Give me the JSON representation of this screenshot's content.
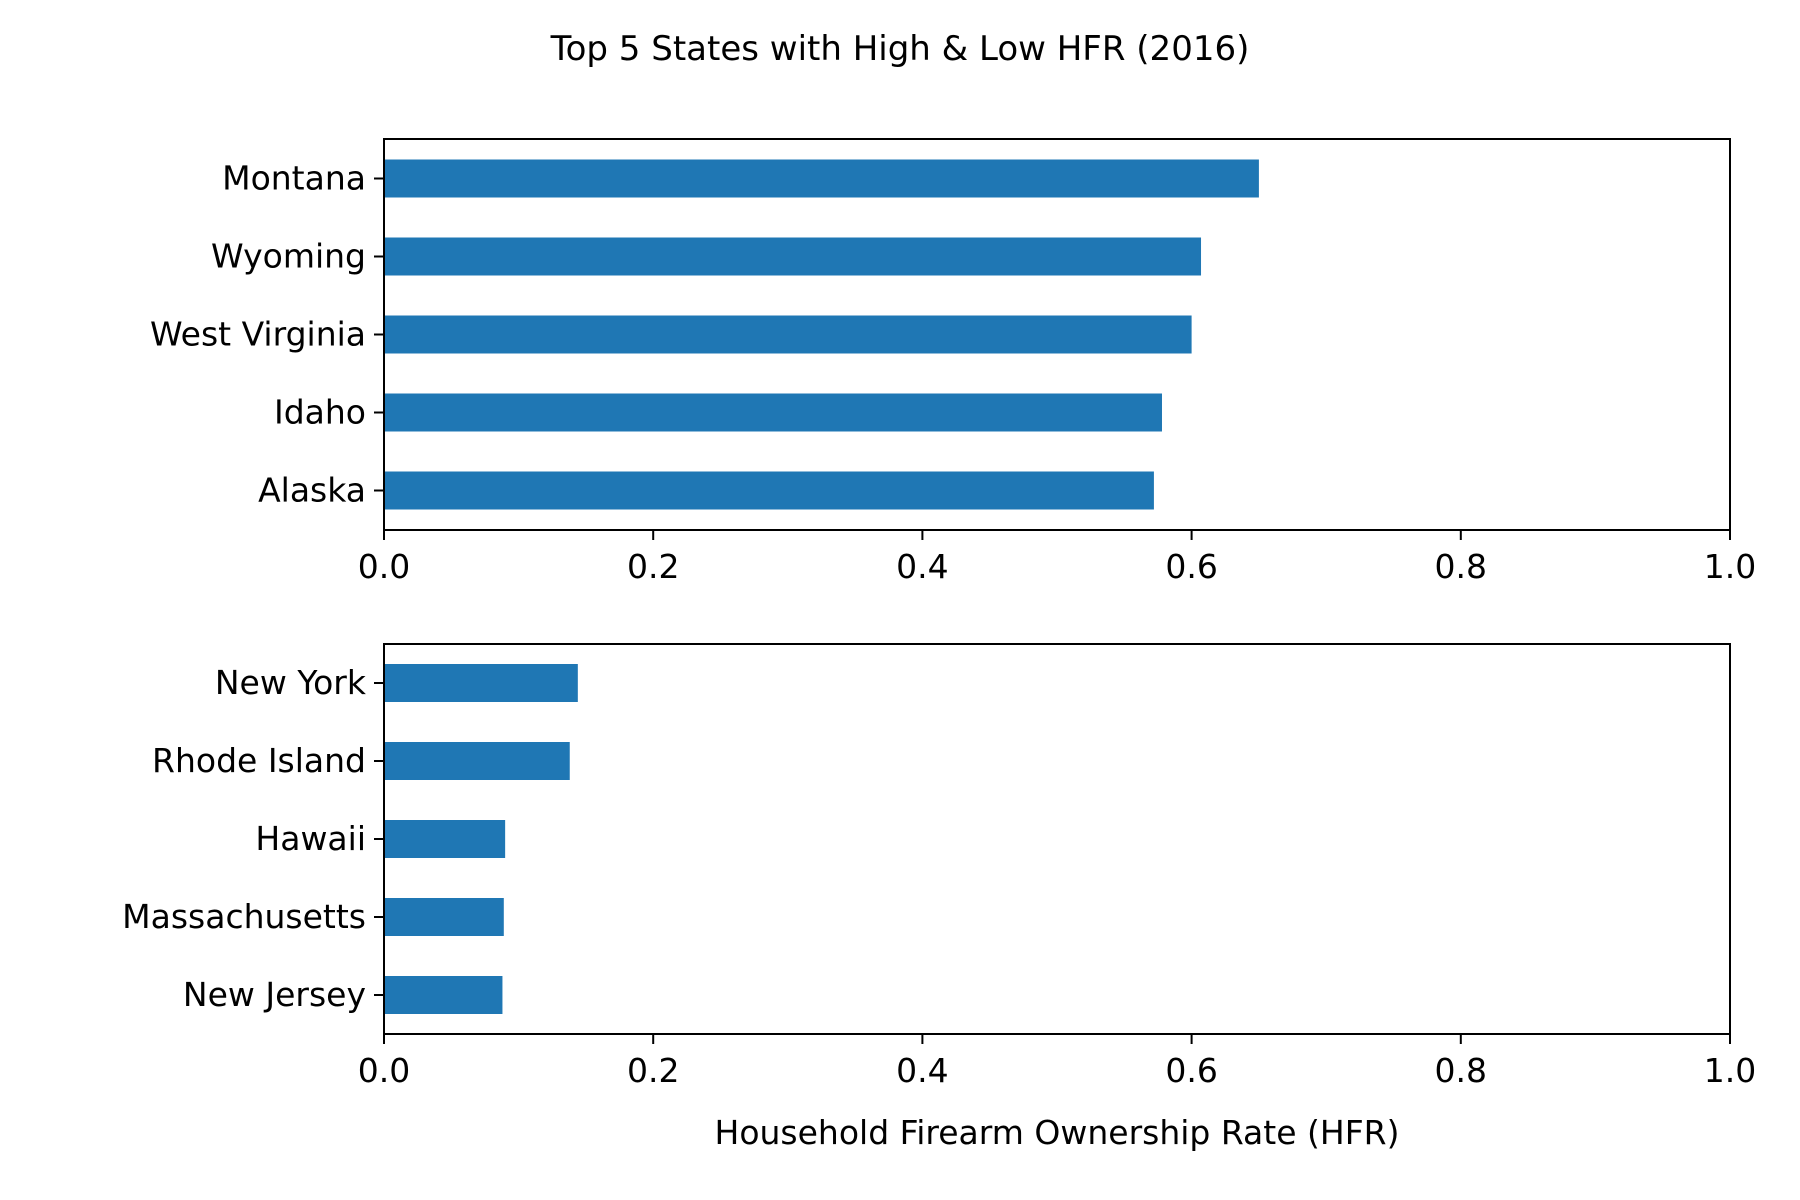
{
  "title": "Top 5 States with High & Low HFR (2016)",
  "bar_color": "#1f77b4",
  "chart_data": [
    {
      "type": "bar",
      "orientation": "horizontal",
      "categories": [
        "Montana",
        "Wyoming",
        "West Virginia",
        "Idaho",
        "Alaska"
      ],
      "values": [
        0.65,
        0.607,
        0.6,
        0.578,
        0.572
      ],
      "xlim": [
        0.0,
        1.0
      ],
      "xticks": [
        "0.0",
        "0.2",
        "0.4",
        "0.6",
        "0.8",
        "1.0"
      ],
      "xlabel": "",
      "ylabel": "",
      "grid": false
    },
    {
      "type": "bar",
      "orientation": "horizontal",
      "categories": [
        "New York",
        "Rhode Island",
        "Hawaii",
        "Massachusetts",
        "New Jersey"
      ],
      "values": [
        0.144,
        0.138,
        0.09,
        0.089,
        0.088
      ],
      "xlim": [
        0.0,
        1.0
      ],
      "xticks": [
        "0.0",
        "0.2",
        "0.4",
        "0.6",
        "0.8",
        "1.0"
      ],
      "xlabel": "Household Firearm Ownership Rate (HFR)",
      "ylabel": "",
      "grid": false
    }
  ]
}
